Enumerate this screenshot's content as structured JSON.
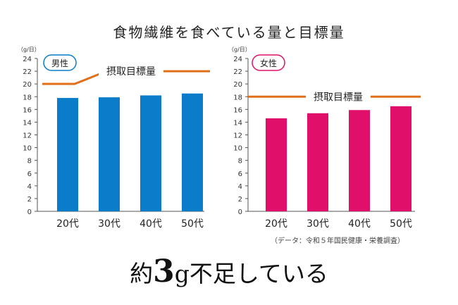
{
  "title": "食物繊維を食べている量と目標量",
  "source": "（データ：令和５年国民健康・栄養調査）",
  "headline": "約3g不足している",
  "chart_data": [
    {
      "type": "bar",
      "unit_label": "（g/日）",
      "legend_badge": "男性",
      "categories": [
        "20代",
        "30代",
        "40代",
        "50代"
      ],
      "values": [
        17.8,
        17.9,
        18.2,
        18.5
      ],
      "y_ticks": [
        0,
        2,
        4,
        6,
        8,
        10,
        12,
        14,
        16,
        18,
        20,
        22,
        24
      ],
      "ylim": [
        0,
        24
      ],
      "bar_color": "#0a7cc9",
      "target_line": {
        "label": "摂取目標量",
        "values": [
          20,
          22,
          22,
          22
        ],
        "color": "#e0701a"
      },
      "grid": false
    },
    {
      "type": "bar",
      "unit_label": "（g/日）",
      "legend_badge": "女性",
      "categories": [
        "20代",
        "30代",
        "40代",
        "50代"
      ],
      "values": [
        14.6,
        15.4,
        15.9,
        16.5
      ],
      "y_ticks": [
        0,
        2,
        4,
        6,
        8,
        10,
        12,
        14,
        16,
        18,
        20,
        22,
        24
      ],
      "ylim": [
        0,
        24
      ],
      "bar_color": "#e0106a",
      "target_line": {
        "label": "摂取目標量",
        "values": [
          18,
          18,
          18,
          18
        ],
        "color": "#e0701a"
      },
      "grid": false
    }
  ]
}
